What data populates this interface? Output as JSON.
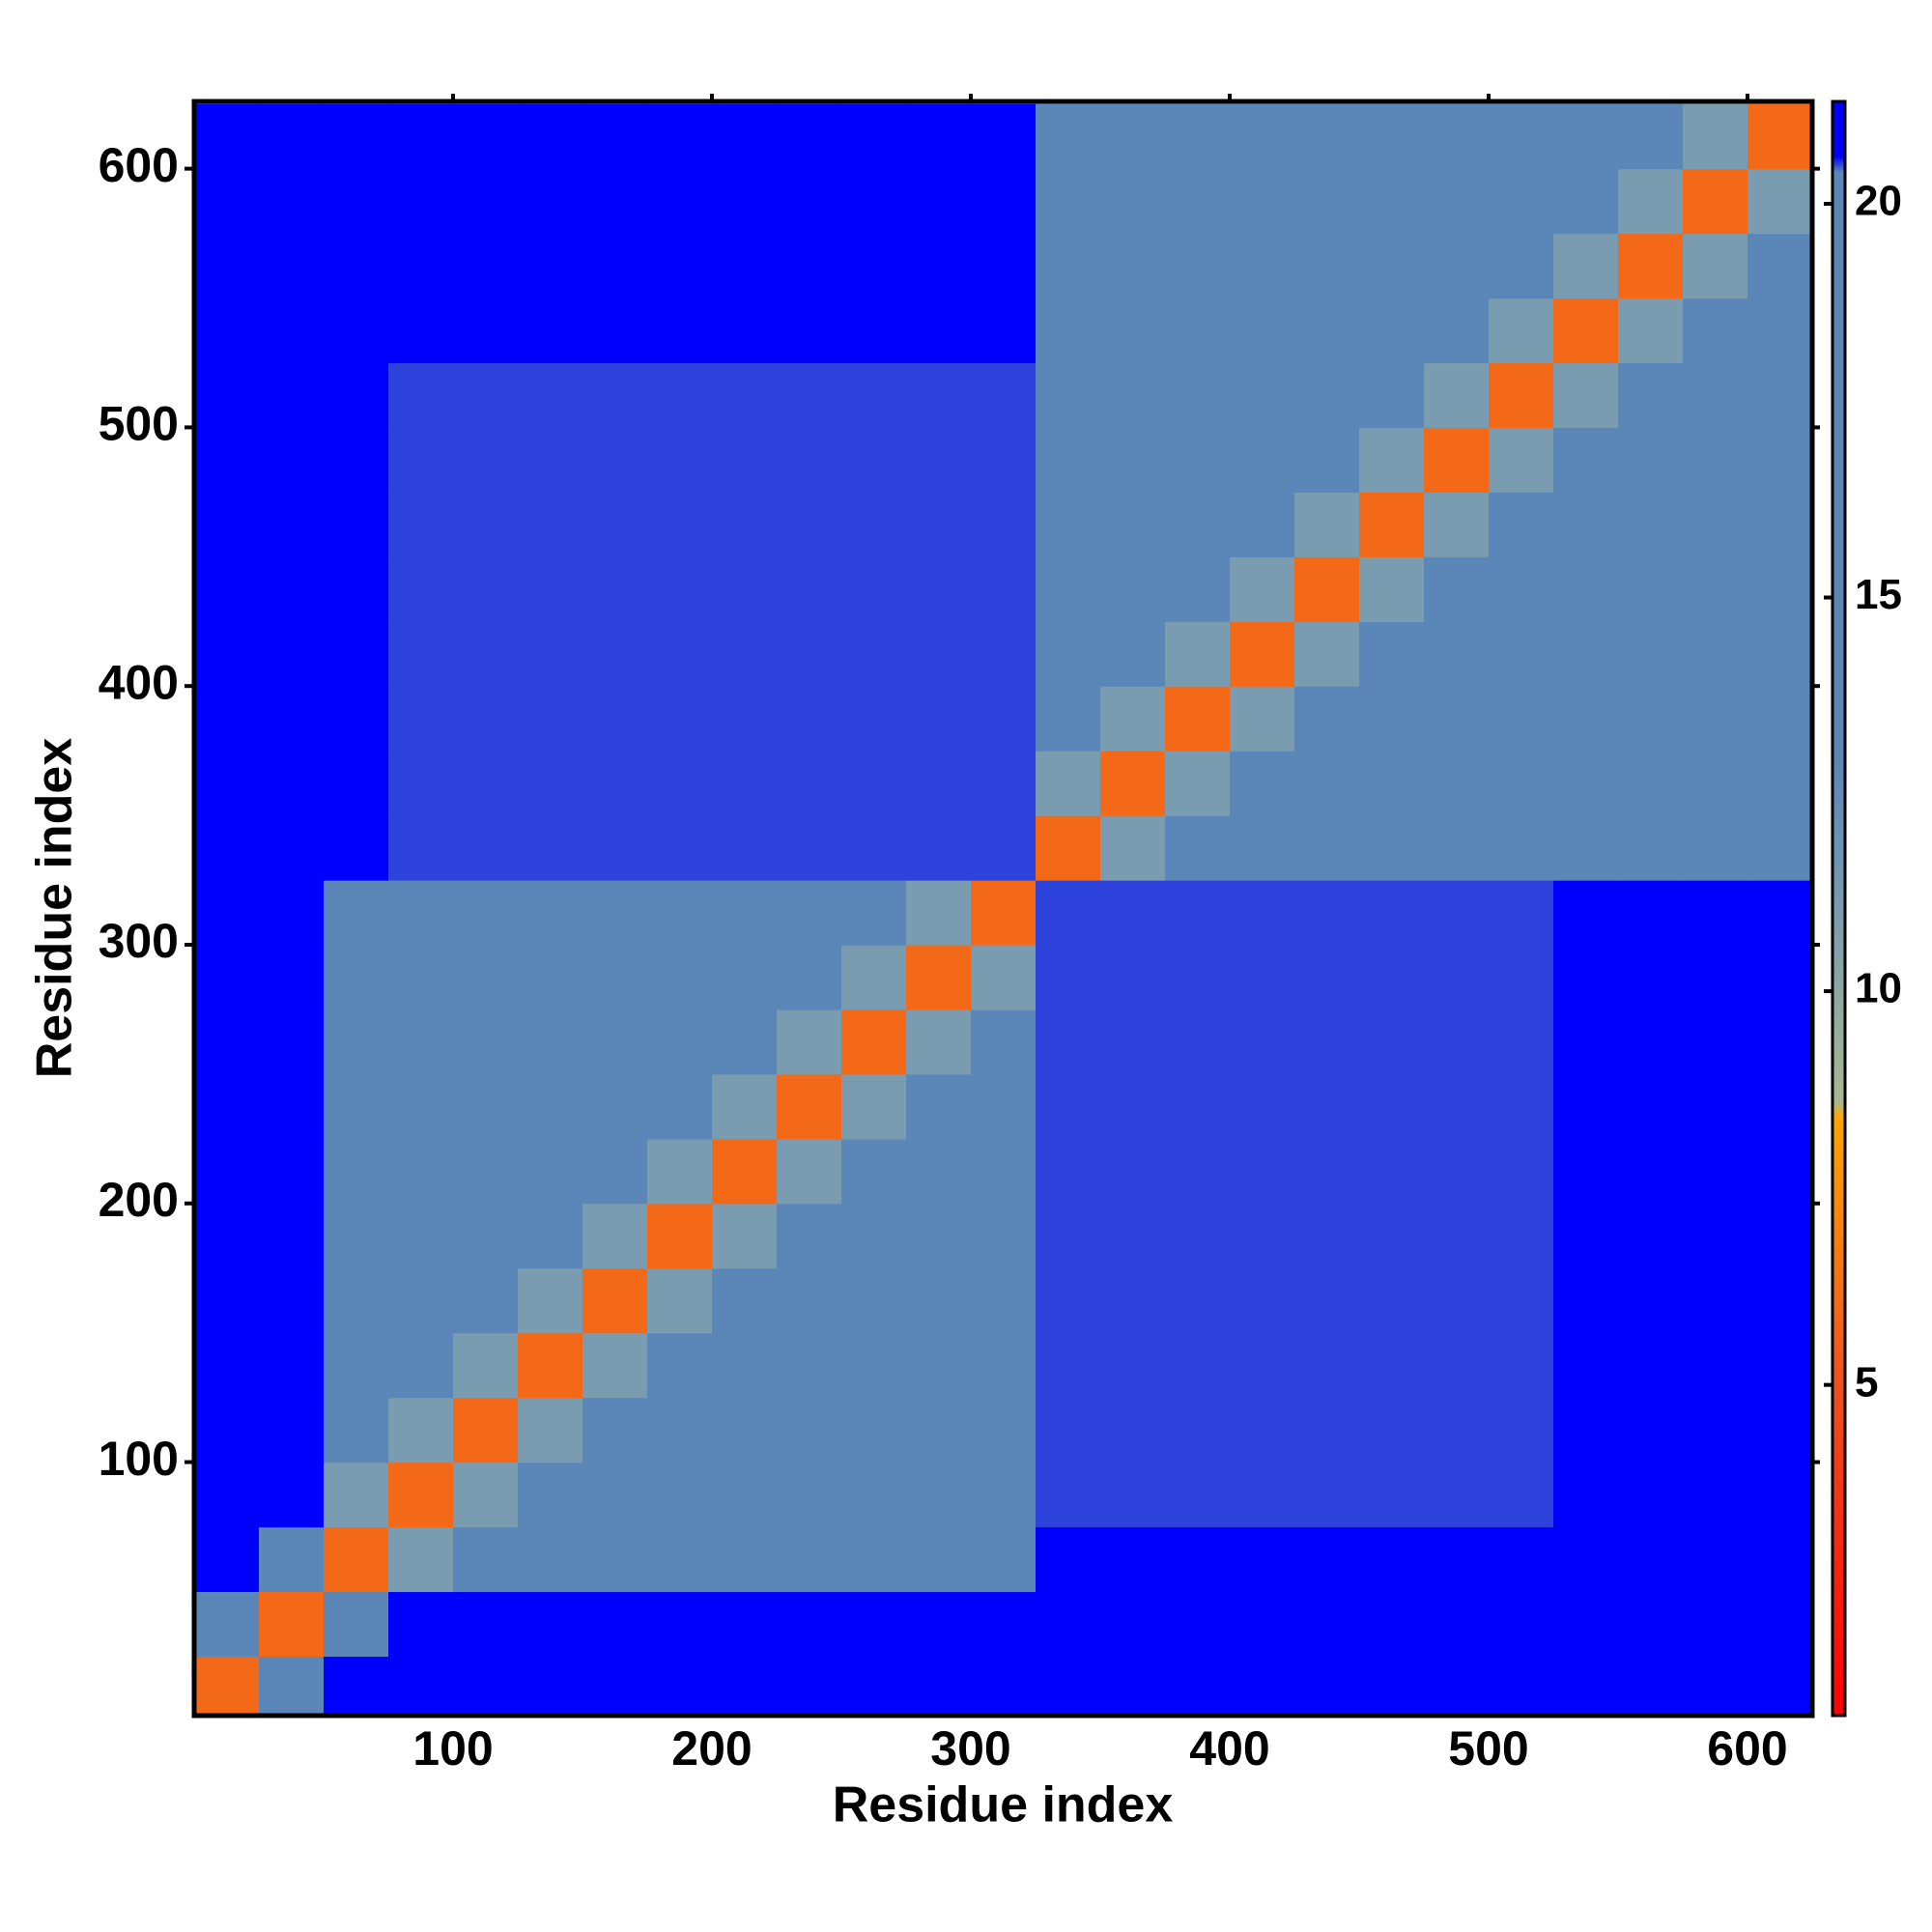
{
  "chart_data": {
    "type": "heatmap",
    "xlabel": "Residue index",
    "ylabel": "Residue index",
    "xlim": [
      0,
      625
    ],
    "ylim": [
      2,
      626
    ],
    "xticks": [
      100,
      200,
      300,
      400,
      500,
      600
    ],
    "yticks": [
      100,
      200,
      300,
      400,
      500,
      600
    ],
    "x_bins": [
      0,
      25,
      50,
      75,
      100,
      125,
      150,
      175,
      200,
      225,
      250,
      275,
      300,
      325,
      350,
      375,
      400,
      425,
      450,
      475,
      500,
      525,
      550,
      575,
      600,
      625
    ],
    "y_bins": [
      0,
      25,
      50,
      75,
      100,
      125,
      150,
      175,
      200,
      225,
      250,
      275,
      300,
      325,
      350,
      375,
      400,
      425,
      450,
      475,
      500,
      525,
      550,
      575,
      600,
      625
    ],
    "z": [
      [
        6,
        14,
        21,
        21,
        21,
        21,
        21,
        21,
        21,
        21,
        21,
        21,
        21,
        21,
        21,
        21,
        21,
        21,
        21,
        21,
        21,
        21,
        21,
        21,
        21
      ],
      [
        14,
        6,
        14,
        21,
        21,
        21,
        21,
        21,
        21,
        21,
        21,
        21,
        21,
        21,
        21,
        21,
        21,
        21,
        21,
        21,
        21,
        21,
        21,
        21,
        21
      ],
      [
        21,
        14,
        6,
        11,
        16,
        16,
        16,
        16,
        16,
        16,
        16,
        16,
        16,
        21,
        21,
        21,
        21,
        21,
        21,
        21,
        21,
        21,
        21,
        21,
        21
      ],
      [
        21,
        21,
        11,
        6,
        11,
        16,
        16,
        16,
        16,
        16,
        16,
        16,
        16,
        20.5,
        20.5,
        20.5,
        20.5,
        20.5,
        20.5,
        20.5,
        20.5,
        21,
        21,
        21,
        21
      ],
      [
        21,
        21,
        16,
        11,
        6,
        11,
        16,
        16,
        16,
        16,
        16,
        16,
        16,
        20.5,
        20.5,
        20.5,
        20.5,
        20.5,
        20.5,
        20.5,
        20.5,
        21,
        21,
        21,
        21
      ],
      [
        21,
        21,
        16,
        16,
        11,
        6,
        11,
        16,
        16,
        16,
        16,
        16,
        16,
        20.5,
        20.5,
        20.5,
        20.5,
        20.5,
        20.5,
        20.5,
        20.5,
        21,
        21,
        21,
        21
      ],
      [
        21,
        21,
        16,
        16,
        16,
        11,
        6,
        11,
        16,
        16,
        16,
        16,
        16,
        20.5,
        20.5,
        20.5,
        20.5,
        20.5,
        20.5,
        20.5,
        20.5,
        21,
        21,
        21,
        21
      ],
      [
        21,
        21,
        16,
        16,
        16,
        16,
        11,
        6,
        11,
        16,
        16,
        16,
        16,
        20.5,
        20.5,
        20.5,
        20.5,
        20.5,
        20.5,
        20.5,
        20.5,
        21,
        21,
        21,
        21
      ],
      [
        21,
        21,
        16,
        16,
        16,
        16,
        16,
        11,
        6,
        11,
        16,
        16,
        16,
        20.5,
        20.5,
        20.5,
        20.5,
        20.5,
        20.5,
        20.5,
        20.5,
        21,
        21,
        21,
        21
      ],
      [
        21,
        21,
        16,
        16,
        16,
        16,
        16,
        16,
        11,
        6,
        11,
        16,
        16,
        20.5,
        20.5,
        20.5,
        20.5,
        20.5,
        20.5,
        20.5,
        20.5,
        21,
        21,
        21,
        21
      ],
      [
        21,
        21,
        16,
        16,
        16,
        16,
        16,
        16,
        16,
        11,
        6,
        11,
        16,
        20.5,
        20.5,
        20.5,
        20.5,
        20.5,
        20.5,
        20.5,
        20.5,
        21,
        21,
        21,
        21
      ],
      [
        21,
        21,
        16,
        16,
        16,
        16,
        16,
        16,
        16,
        16,
        11,
        6,
        11,
        20.5,
        20.5,
        20.5,
        20.5,
        20.5,
        20.5,
        20.5,
        20.5,
        21,
        21,
        21,
        21
      ],
      [
        21,
        21,
        16,
        16,
        16,
        16,
        16,
        16,
        16,
        16,
        16,
        11,
        6,
        20.5,
        20.5,
        20.5,
        20.5,
        20.5,
        20.5,
        20.5,
        20.5,
        21,
        21,
        21,
        21
      ],
      [
        21,
        21,
        21,
        20.5,
        20.5,
        20.5,
        20.5,
        20.5,
        20.5,
        20.5,
        20.5,
        20.5,
        20.5,
        6,
        11,
        16,
        16,
        16,
        16,
        16,
        16,
        16,
        16,
        16,
        16
      ],
      [
        21,
        21,
        21,
        20.5,
        20.5,
        20.5,
        20.5,
        20.5,
        20.5,
        20.5,
        20.5,
        20.5,
        20.5,
        11,
        6,
        11,
        16,
        16,
        16,
        16,
        16,
        16,
        16,
        16,
        16
      ],
      [
        21,
        21,
        21,
        20.5,
        20.5,
        20.5,
        20.5,
        20.5,
        20.5,
        20.5,
        20.5,
        20.5,
        20.5,
        16,
        11,
        6,
        11,
        16,
        16,
        16,
        16,
        16,
        16,
        16,
        16
      ],
      [
        21,
        21,
        21,
        20.5,
        20.5,
        20.5,
        20.5,
        20.5,
        20.5,
        20.5,
        20.5,
        20.5,
        20.5,
        16,
        16,
        11,
        6,
        11,
        16,
        16,
        16,
        16,
        16,
        16,
        16
      ],
      [
        21,
        21,
        21,
        20.5,
        20.5,
        20.5,
        20.5,
        20.5,
        20.5,
        20.5,
        20.5,
        20.5,
        20.5,
        16,
        16,
        16,
        11,
        6,
        11,
        16,
        16,
        16,
        16,
        16,
        16
      ],
      [
        21,
        21,
        21,
        20.5,
        20.5,
        20.5,
        20.5,
        20.5,
        20.5,
        20.5,
        20.5,
        20.5,
        20.5,
        16,
        16,
        16,
        16,
        11,
        6,
        11,
        16,
        16,
        16,
        16,
        16
      ],
      [
        21,
        21,
        21,
        20.5,
        20.5,
        20.5,
        20.5,
        20.5,
        20.5,
        20.5,
        20.5,
        20.5,
        20.5,
        16,
        16,
        16,
        16,
        16,
        11,
        6,
        11,
        16,
        16,
        16,
        16
      ],
      [
        21,
        21,
        21,
        20.5,
        20.5,
        20.5,
        20.5,
        20.5,
        20.5,
        20.5,
        20.5,
        20.5,
        20.5,
        16,
        16,
        16,
        16,
        16,
        16,
        11,
        6,
        11,
        16,
        16,
        16
      ],
      [
        21,
        21,
        21,
        21,
        21,
        21,
        21,
        21,
        21,
        21,
        21,
        21,
        21,
        16,
        16,
        16,
        16,
        16,
        16,
        16,
        11,
        6,
        11,
        16,
        16
      ],
      [
        21,
        21,
        21,
        21,
        21,
        21,
        21,
        21,
        21,
        21,
        21,
        21,
        21,
        16,
        16,
        16,
        16,
        16,
        16,
        16,
        16,
        11,
        6,
        11,
        16
      ],
      [
        21,
        21,
        21,
        21,
        21,
        21,
        21,
        21,
        21,
        21,
        21,
        21,
        21,
        16,
        16,
        16,
        16,
        16,
        16,
        16,
        16,
        16,
        11,
        6,
        11
      ],
      [
        21,
        21,
        21,
        21,
        21,
        21,
        21,
        21,
        21,
        21,
        21,
        21,
        21,
        16,
        16,
        16,
        16,
        16,
        16,
        16,
        16,
        16,
        16,
        11,
        6
      ]
    ],
    "colorscale": [
      [
        0.8,
        "#ff0000"
      ],
      [
        5,
        "#f05020"
      ],
      [
        8.4,
        "#ffa500"
      ],
      [
        8.6,
        "#a8b890"
      ],
      [
        11,
        "#7a9cb0"
      ],
      [
        13,
        "#5b86b8"
      ],
      [
        20.4,
        "#5b86b8"
      ],
      [
        20.6,
        "#0000ff"
      ],
      [
        21.3,
        "#0000ff"
      ]
    ],
    "zlim": [
      0.8,
      21.3
    ],
    "zticks": [
      5,
      10,
      15,
      20
    ]
  }
}
